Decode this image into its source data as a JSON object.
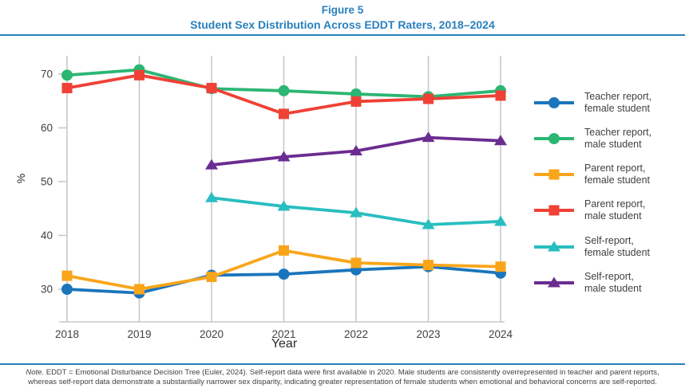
{
  "header": {
    "figure_label": "Figure 5",
    "title": "Student Sex Distribution Across EDDT Raters, 2018–2024"
  },
  "colors": {
    "accent_blue": "#2980BE",
    "grid": "#C8C8C8",
    "text": "#414141"
  },
  "chart_data": {
    "type": "line",
    "title": "Student Sex Distribution Across EDDT Raters, 2018–2024",
    "x": [
      2018,
      2019,
      2020,
      2021,
      2022,
      2023,
      2024
    ],
    "xlabel": "Year",
    "ylabel": "%",
    "yticks": [
      30,
      40,
      50,
      60,
      70
    ],
    "ylim": [
      26,
      73.5
    ],
    "grid": "vertical-only",
    "legend_position": "right",
    "series": [
      {
        "name": "Teacher report, female student",
        "label_lines": [
          "Teacher report,",
          "female student"
        ],
        "color": "#1B75BC",
        "marker": "circle",
        "values": [
          30.0,
          29.3,
          32.6,
          32.8,
          33.6,
          34.2,
          33.0
        ]
      },
      {
        "name": "Teacher report, male student",
        "label_lines": [
          "Teacher report,",
          "male student"
        ],
        "color": "#2BB673",
        "marker": "circle",
        "values": [
          69.8,
          70.8,
          67.3,
          66.9,
          66.3,
          65.8,
          66.9
        ]
      },
      {
        "name": "Parent report, female student",
        "label_lines": [
          "Parent report,",
          "female student"
        ],
        "color": "#F9A51A",
        "marker": "square",
        "values": [
          32.5,
          30.0,
          32.3,
          37.2,
          34.9,
          34.5,
          34.2
        ]
      },
      {
        "name": "Parent report, male student",
        "label_lines": [
          "Parent report,",
          "male student"
        ],
        "color": "#EF4136",
        "marker": "square",
        "values": [
          67.4,
          69.8,
          67.4,
          62.6,
          64.9,
          65.4,
          66.0
        ]
      },
      {
        "name": "Self-report, female student",
        "label_lines": [
          "Self-report,",
          "female student"
        ],
        "color": "#29BEC0",
        "marker": "triangle",
        "values": [
          null,
          null,
          47.0,
          45.4,
          44.2,
          42.0,
          42.6
        ]
      },
      {
        "name": "Self-report, male student",
        "label_lines": [
          "Self-report,",
          "male student"
        ],
        "color": "#6B2C91",
        "marker": "triangle",
        "values": [
          null,
          null,
          53.1,
          54.6,
          55.7,
          58.2,
          57.6
        ]
      }
    ]
  },
  "note": {
    "prefix": "Note.",
    "line1": " EDDT = Emotional Disturbance Decision Tree (Euler, 2024). Self-report data were first available in 2020. Male students are consistently overrepresented in teacher and parent reports,",
    "line2": "whereas self-report data demonstrate a substantially narrower sex disparity, indicating greater representation of female students when emotional and behavioral concerns are self-reported."
  }
}
